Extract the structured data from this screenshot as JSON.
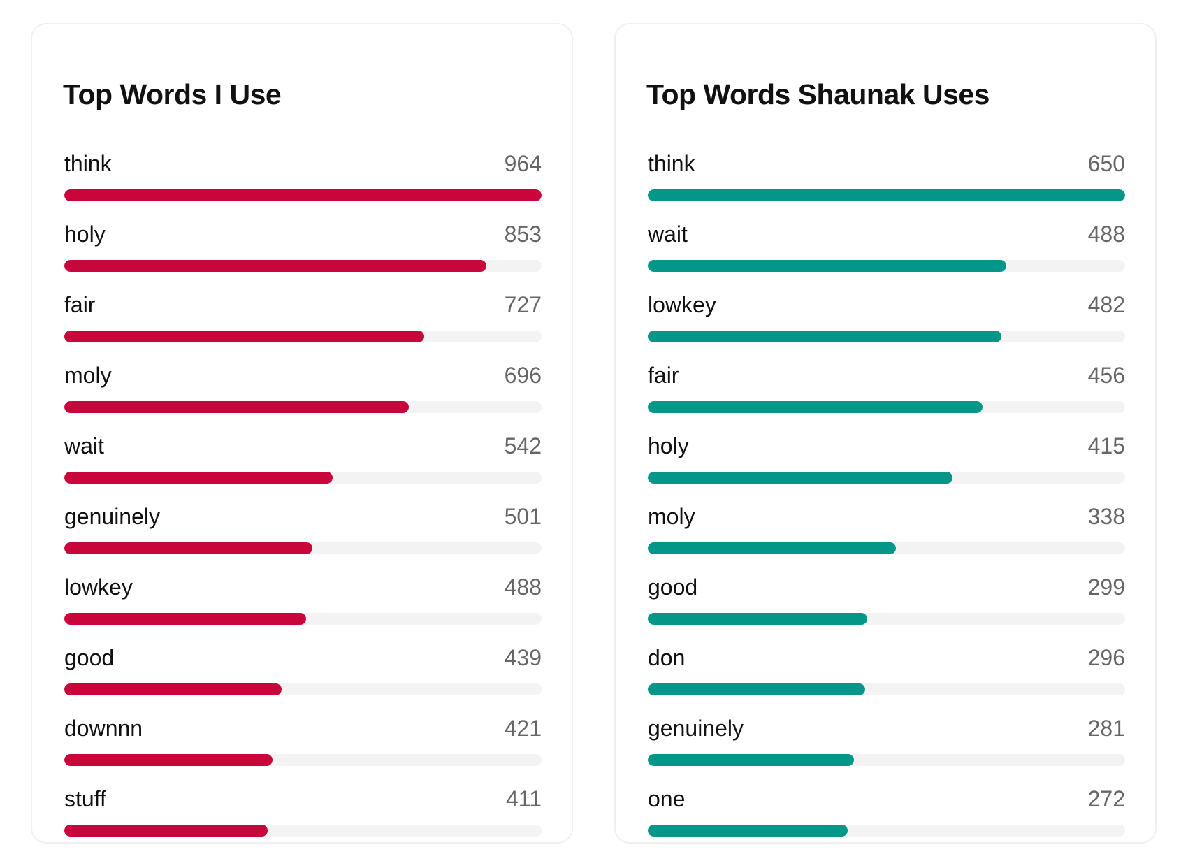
{
  "chart_data": [
    {
      "type": "bar",
      "orientation": "horizontal",
      "title": "Top Words I Use",
      "color": "#c8063c",
      "categories": [
        "think",
        "holy",
        "fair",
        "moly",
        "wait",
        "genuinely",
        "lowkey",
        "good",
        "downnn",
        "stuff"
      ],
      "values": [
        964,
        853,
        727,
        696,
        542,
        501,
        488,
        439,
        421,
        411
      ],
      "xlim": [
        0,
        964
      ]
    },
    {
      "type": "bar",
      "orientation": "horizontal",
      "title": "Top Words Shaunak Uses",
      "color": "#049789",
      "categories": [
        "think",
        "wait",
        "lowkey",
        "fair",
        "holy",
        "moly",
        "good",
        "don",
        "genuinely",
        "one"
      ],
      "values": [
        650,
        488,
        482,
        456,
        415,
        338,
        299,
        296,
        281,
        272
      ],
      "xlim": [
        0,
        650
      ]
    }
  ]
}
